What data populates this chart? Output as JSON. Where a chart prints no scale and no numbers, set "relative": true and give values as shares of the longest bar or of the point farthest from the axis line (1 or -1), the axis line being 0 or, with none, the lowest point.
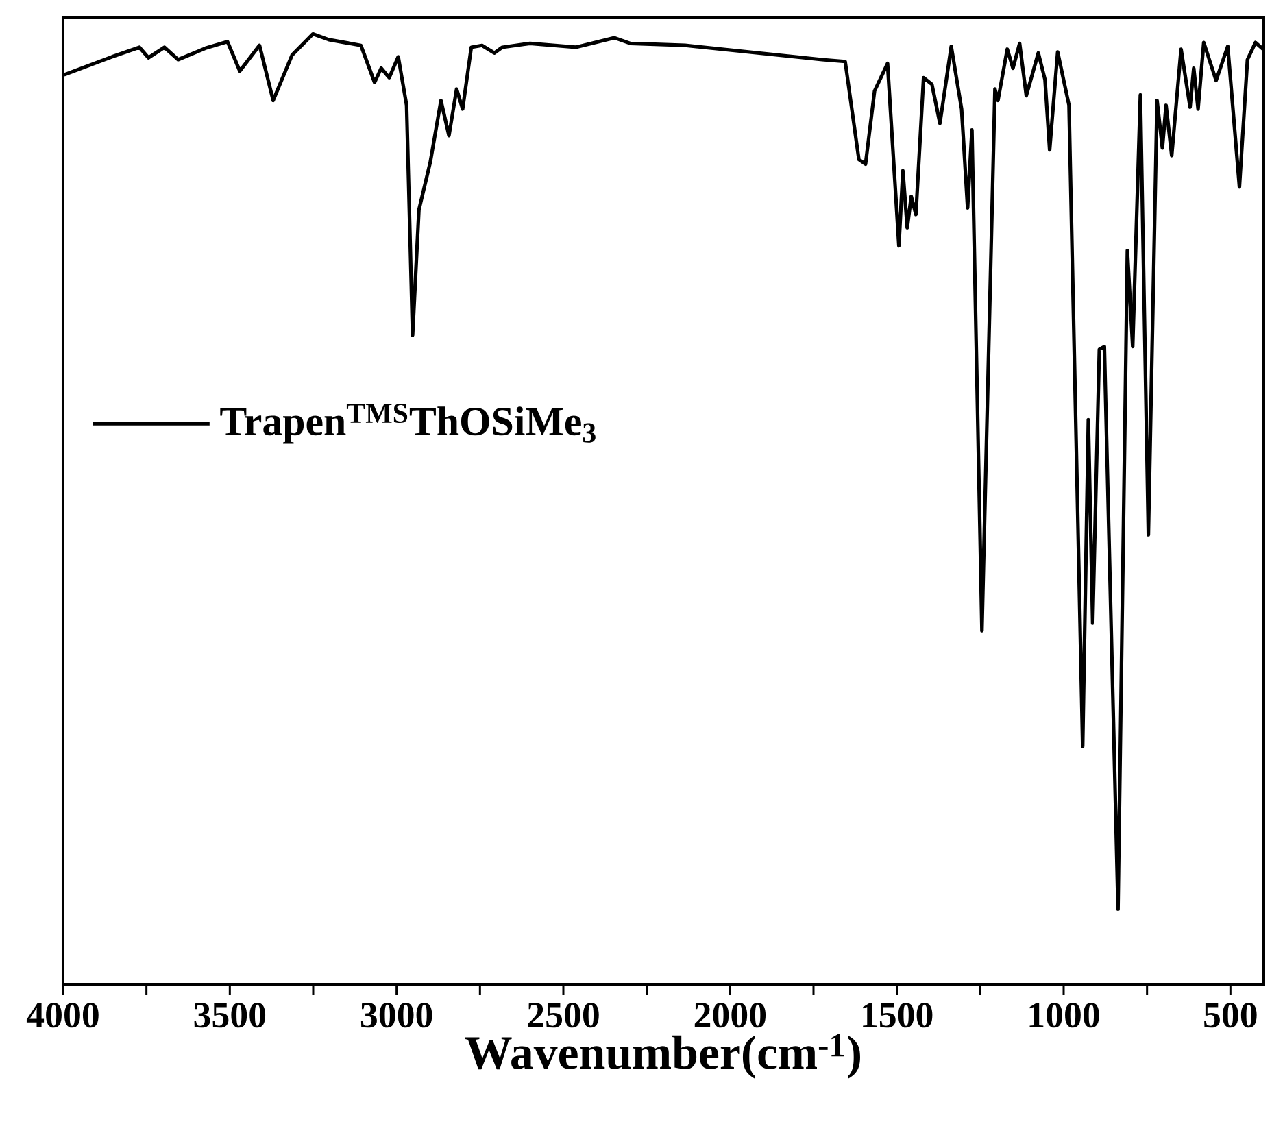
{
  "chart_data": {
    "type": "line",
    "relative": true,
    "xlabel": "Wavenumber(cm$^{-1}$)",
    "x": [
      3997,
      3853,
      3771,
      3744,
      3696,
      3655,
      3573,
      3507,
      3470,
      3411,
      3370,
      3313,
      3251,
      3203,
      3107,
      3066,
      3046,
      3022,
      2995,
      2970,
      2952,
      2933,
      2899,
      2867,
      2843,
      2820,
      2802,
      2776,
      2744,
      2707,
      2683,
      2600,
      2463,
      2347,
      2299,
      2135,
      1724,
      1655,
      1614,
      1594,
      1567,
      1528,
      1494,
      1482,
      1469,
      1457,
      1443,
      1420,
      1395,
      1371,
      1337,
      1306,
      1288,
      1275,
      1245,
      1206,
      1197,
      1169,
      1152,
      1132,
      1112,
      1076,
      1056,
      1042,
      1018,
      984,
      943,
      926,
      913,
      893,
      878,
      837,
      809,
      793,
      770,
      746,
      720,
      704,
      693,
      676,
      648,
      621,
      610,
      597,
      580,
      543,
      508,
      473,
      449,
      425,
      402
    ],
    "series": [
      {
        "name": "**Trapen$^{TMS}$ThOSiMe$_{3}$**",
        "color": "#000000",
        "values": [
          0.957,
          0.976,
          0.986,
          0.975,
          0.986,
          0.973,
          0.985,
          0.992,
          0.961,
          0.988,
          0.93,
          0.978,
          1,
          0.994,
          0.988,
          0.949,
          0.964,
          0.954,
          0.976,
          0.925,
          0.683,
          0.815,
          0.865,
          0.93,
          0.893,
          0.942,
          0.921,
          0.986,
          0.988,
          0.98,
          0.986,
          0.99,
          0.986,
          0.996,
          0.99,
          0.988,
          0.973,
          0.971,
          0.868,
          0.863,
          0.94,
          0.969,
          0.777,
          0.856,
          0.796,
          0.829,
          0.81,
          0.954,
          0.947,
          0.906,
          0.987,
          0.921,
          0.817,
          0.899,
          0.372,
          0.942,
          0.93,
          0.984,
          0.964,
          0.99,
          0.935,
          0.98,
          0.952,
          0.878,
          0.981,
          0.925,
          0.25,
          0.594,
          0.38,
          0.668,
          0.671,
          0.079,
          0.772,
          0.671,
          0.936,
          0.473,
          0.93,
          0.88,
          0.925,
          0.872,
          0.984,
          0.923,
          0.964,
          0.921,
          0.991,
          0.951,
          0.987,
          0.839,
          0.973,
          0.991,
          0.984
        ]
      }
    ],
    "xlim": [
      4000,
      400
    ],
    "xticks": [
      4000,
      {
        "value": 3750,
        "label": null
      },
      3500,
      {
        "value": 3250,
        "label": null
      },
      3000,
      {
        "value": 2750,
        "label": null
      },
      2500,
      {
        "value": 2250,
        "label": null
      },
      2000,
      {
        "value": 1750,
        "label": null
      },
      1500,
      {
        "value": 1250,
        "label": null
      },
      1000,
      {
        "value": 750,
        "label": null
      },
      500
    ],
    "tick_labels": "x",
    "line_style": "solid"
  }
}
